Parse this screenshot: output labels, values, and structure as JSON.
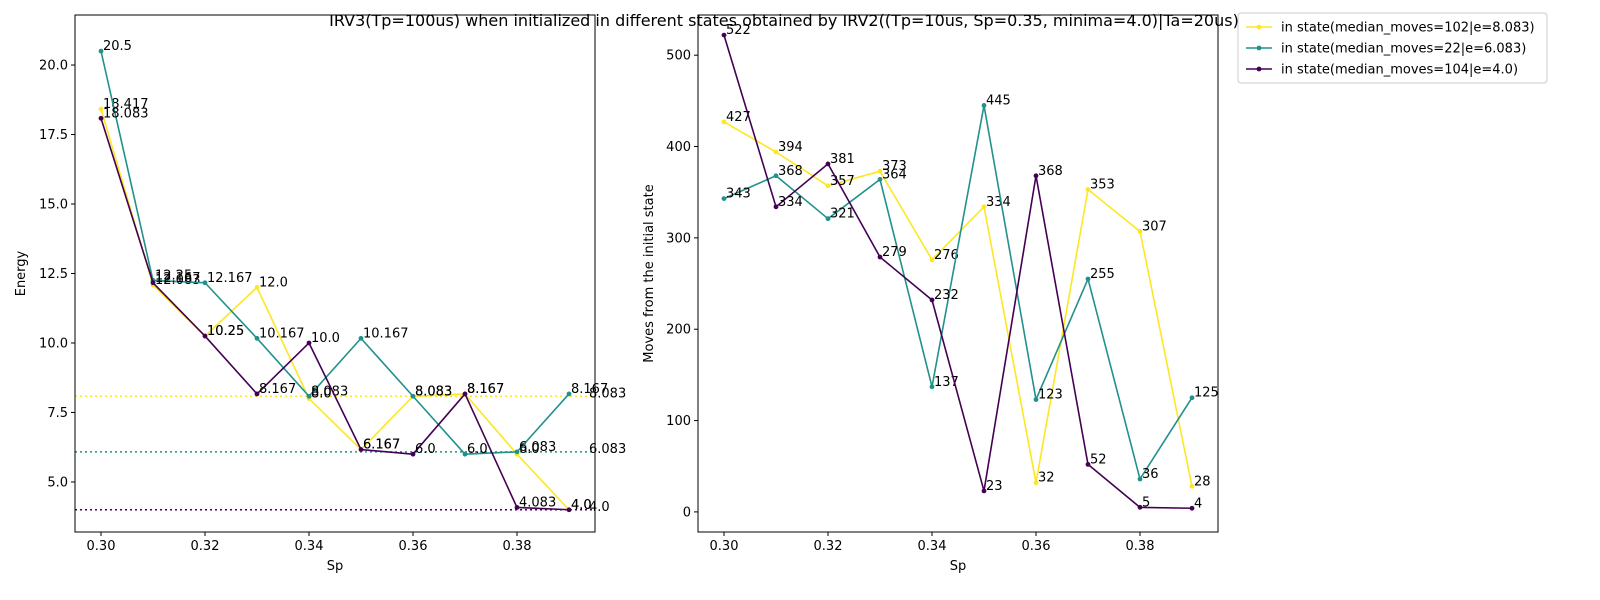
{
  "title": "IRV3(Tp=100us) when initialized in different states obtained by IRV2((Tp=10us, Sp=0.35, minima=4.0)|Ta=20us)",
  "legend": {
    "placement": "outside-right-top",
    "entries": [
      "in state(median_moves=102|e=8.083)",
      "in state(median_moves=22|e=6.083)",
      "in state(median_moves=104|e=4.0)"
    ]
  },
  "colors": [
    "#fde725",
    "#21918c",
    "#440154"
  ],
  "chart_data": [
    {
      "type": "line",
      "xlabel": "Sp",
      "ylabel": "Energy",
      "xlim": [
        0.295,
        0.395
      ],
      "ylim": [
        3.2,
        21.8
      ],
      "xticks": [
        "0.30",
        "0.32",
        "0.34",
        "0.36",
        "0.38"
      ],
      "yticks": [
        "5.0",
        "7.5",
        "10.0",
        "12.5",
        "15.0",
        "17.5",
        "20.0"
      ],
      "grid": false,
      "x": [
        0.3,
        0.31,
        0.32,
        0.33,
        0.34,
        0.35,
        0.36,
        0.37,
        0.38,
        0.39
      ],
      "series": [
        {
          "name": "in state(median_moves=102|e=8.083)",
          "color": "#fde725",
          "values": [
            18.417,
            12.083,
            10.25,
            12.0,
            8.0,
            6.167,
            8.083,
            8.167,
            6.0,
            4.0
          ],
          "labels": [
            "18.417",
            "12.083",
            "10.25",
            "12.0",
            "8.0",
            "6.167",
            "8.083",
            "8.167",
            "6.0",
            "4.0"
          ]
        },
        {
          "name": "in state(median_moves=22|e=6.083)",
          "color": "#21918c",
          "values": [
            20.5,
            12.25,
            12.167,
            10.167,
            8.083,
            10.167,
            8.083,
            6.0,
            6.083,
            8.167
          ],
          "labels": [
            "20.5",
            "12.25",
            "12.167",
            "10.167",
            "8.083",
            "10.167",
            "8.083",
            "6.0",
            "6.083",
            "8.167"
          ]
        },
        {
          "name": "in state(median_moves=104|e=4.0)",
          "color": "#440154",
          "values": [
            18.083,
            12.167,
            10.25,
            8.167,
            10.0,
            6.167,
            6.0,
            8.167,
            4.083,
            4.0
          ],
          "labels": [
            "18.083",
            "12.167",
            "10.25",
            "8.167",
            "10.0",
            "6.167",
            "6.0",
            "8.167",
            "4.083",
            "4.0"
          ]
        }
      ],
      "hlines": [
        {
          "value": 8.083,
          "label": "8.083",
          "color": "#fde725",
          "style": "dotted"
        },
        {
          "value": 6.083,
          "label": "6.083",
          "color": "#21918c",
          "style": "dotted"
        },
        {
          "value": 4.0,
          "label": "4.0",
          "color": "#440154",
          "style": "dotted"
        }
      ]
    },
    {
      "type": "line",
      "xlabel": "Sp",
      "ylabel": "Moves from the initial state",
      "xlim": [
        0.295,
        0.395
      ],
      "ylim": [
        -22,
        544
      ],
      "xticks": [
        "0.30",
        "0.32",
        "0.34",
        "0.36",
        "0.38"
      ],
      "yticks": [
        "0",
        "100",
        "200",
        "300",
        "400",
        "500"
      ],
      "grid": false,
      "x": [
        0.3,
        0.31,
        0.32,
        0.33,
        0.34,
        0.35,
        0.36,
        0.37,
        0.38,
        0.39
      ],
      "series": [
        {
          "name": "in state(median_moves=102|e=8.083)",
          "color": "#fde725",
          "values": [
            427,
            394,
            357,
            373,
            276,
            334,
            32,
            353,
            307,
            28
          ],
          "labels": [
            "427",
            "394",
            "357",
            "373",
            "276",
            "334",
            "32",
            "353",
            "307",
            "28"
          ]
        },
        {
          "name": "in state(median_moves=22|e=6.083)",
          "color": "#21918c",
          "values": [
            343,
            368,
            321,
            364,
            137,
            445,
            123,
            255,
            36,
            125
          ],
          "labels": [
            "343",
            "368",
            "321",
            "364",
            "137",
            "445",
            "123",
            "255",
            "36",
            "125"
          ]
        },
        {
          "name": "in state(median_moves=104|e=4.0)",
          "color": "#440154",
          "values": [
            522,
            334,
            381,
            279,
            232,
            23,
            368,
            52,
            5,
            4
          ],
          "labels": [
            "522",
            "334",
            "381",
            "279",
            "232",
            "23",
            "368",
            "52",
            "5",
            "4"
          ]
        }
      ],
      "hlines": []
    }
  ]
}
